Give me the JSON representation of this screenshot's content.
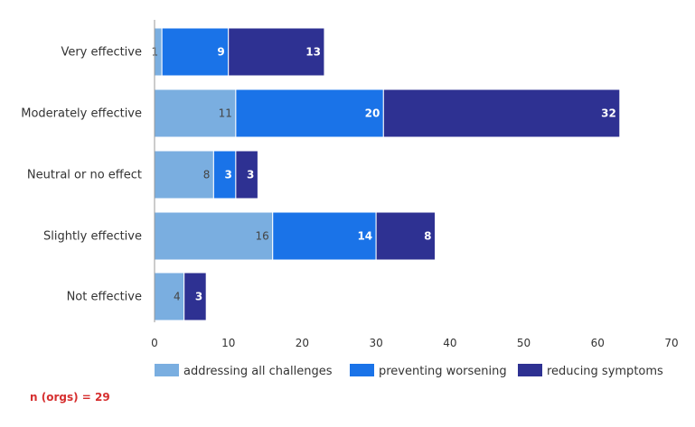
{
  "chart_data": {
    "type": "bar",
    "orientation": "horizontal",
    "stacked": true,
    "categories": [
      "Very effective",
      "Moderately effective",
      "Neutral or no effect",
      "Slightly effective",
      "Not effective"
    ],
    "series": [
      {
        "name": "addressing all challenges",
        "color": "#7aaee0",
        "values": [
          1,
          11,
          8,
          16,
          4
        ],
        "labels": [
          "1",
          "11",
          "8",
          "16",
          "4"
        ]
      },
      {
        "name": "preventing worsening",
        "color": "#1a73e8",
        "values": [
          9,
          20,
          3,
          14,
          0
        ],
        "labels": [
          "9",
          "20",
          "3",
          "14",
          ""
        ]
      },
      {
        "name": "reducing symptoms",
        "color": "#2e3192",
        "values": [
          13,
          32,
          3,
          8,
          3
        ],
        "labels": [
          "13",
          "32",
          "3",
          "8",
          "3"
        ]
      }
    ],
    "xlim": [
      0,
      70
    ],
    "xticks": [
      "0",
      "10",
      "20",
      "30",
      "40",
      "50",
      "60",
      "70"
    ],
    "legend_position": "bottom",
    "grid": false
  },
  "footnote": "n (orgs) = 29"
}
